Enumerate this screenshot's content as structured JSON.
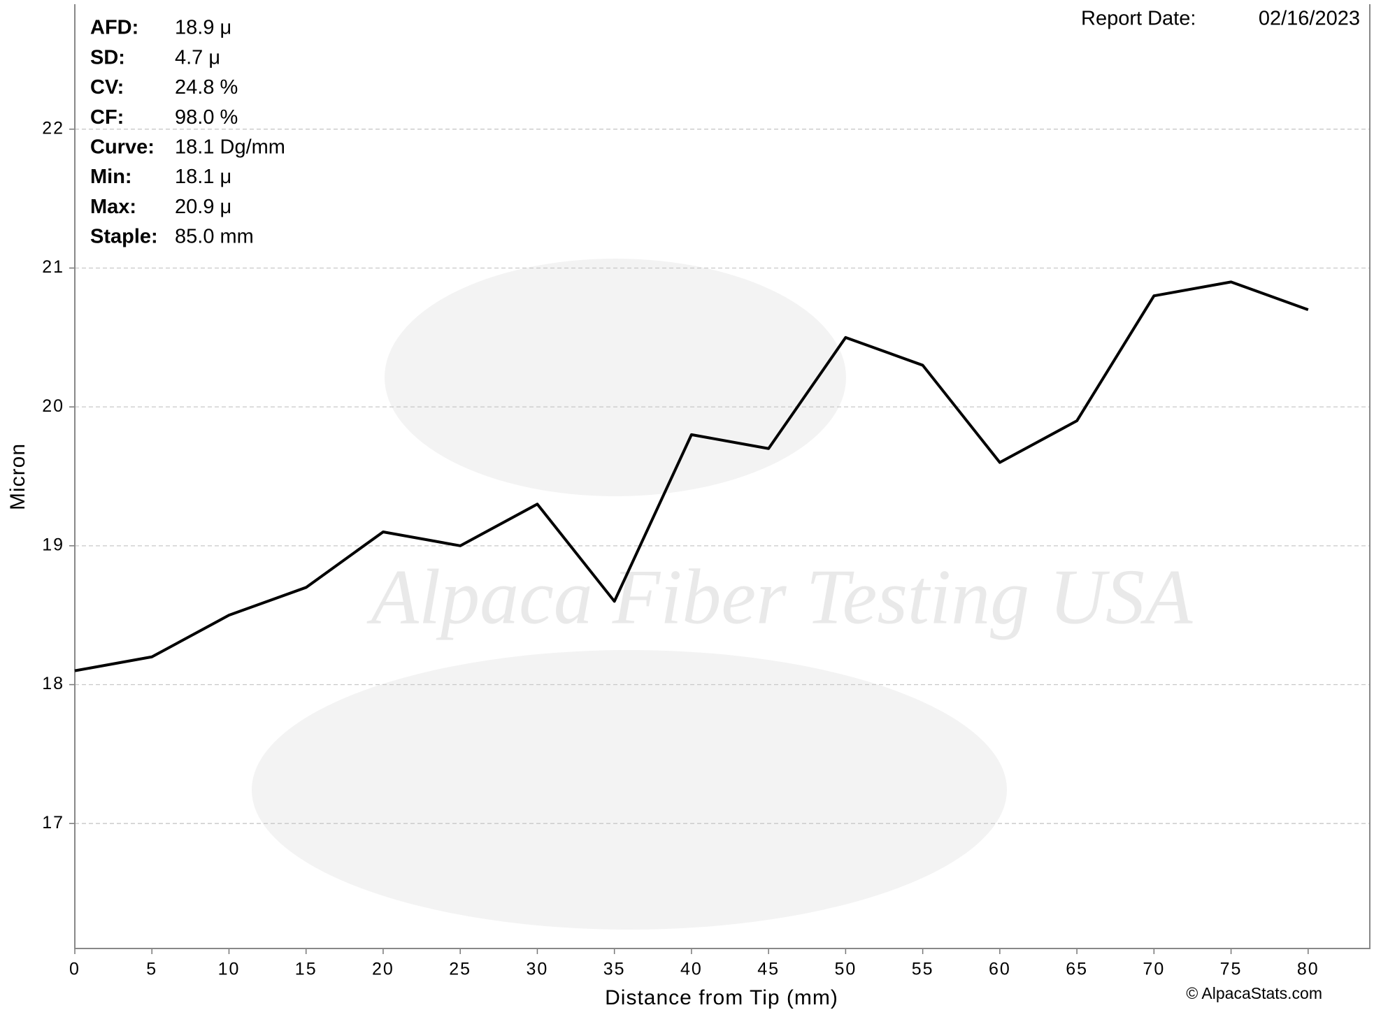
{
  "chart_data": {
    "type": "line",
    "x_label": "Distance from Tip (mm)",
    "y_label": "Micron",
    "x": [
      0,
      5,
      10,
      15,
      20,
      25,
      30,
      35,
      40,
      45,
      50,
      55,
      60,
      65,
      70,
      75,
      80
    ],
    "values": [
      18.1,
      18.2,
      18.5,
      18.7,
      19.1,
      19.0,
      19.3,
      18.6,
      19.8,
      19.7,
      20.5,
      20.3,
      19.6,
      19.9,
      20.8,
      20.9,
      20.7
    ],
    "color": "#000000",
    "xlim": [
      0,
      84
    ],
    "ylim": [
      16.1,
      22.9
    ],
    "xticks": [
      0,
      5,
      10,
      15,
      20,
      25,
      30,
      35,
      40,
      45,
      50,
      55,
      60,
      65,
      70,
      75,
      80
    ],
    "yticks": [
      17,
      18,
      19,
      20,
      21,
      22
    ],
    "grid": true,
    "stats": [
      {
        "label": "AFD:",
        "value": "18.9 μ"
      },
      {
        "label": "SD:",
        "value": "4.7 μ"
      },
      {
        "label": "CV:",
        "value": "24.8 %"
      },
      {
        "label": "CF:",
        "value": "98.0 %"
      },
      {
        "label": "Curve:",
        "value": "18.1 Dg/mm"
      },
      {
        "label": "Min:",
        "value": "18.1 μ"
      },
      {
        "label": "Max:",
        "value": "20.9 μ"
      },
      {
        "label": "Staple:",
        "value": "85.0 mm"
      }
    ],
    "report_date_label": "Report Date:",
    "report_date": "02/16/2023",
    "watermark": "Alpaca Fiber Testing USA",
    "copyright": "© AlpacaStats.com"
  }
}
